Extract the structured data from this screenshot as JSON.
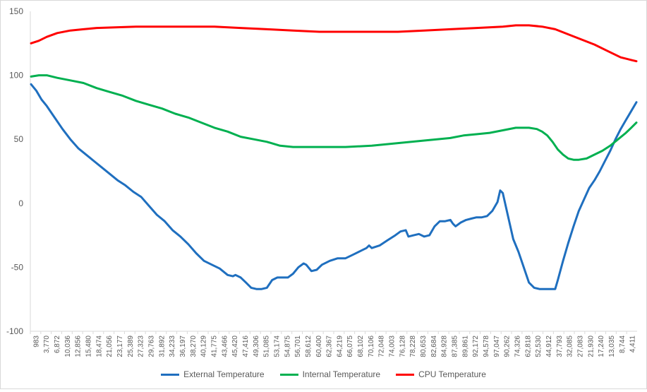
{
  "chart_data": {
    "type": "line",
    "title": "",
    "xlabel": "",
    "ylabel": "",
    "ylim": [
      -100,
      150
    ],
    "y_ticks": [
      -100,
      -50,
      0,
      50,
      100,
      150
    ],
    "grid": false,
    "legend_position": "bottom",
    "x_tick_labels": [
      "983",
      "3,770",
      "6,872",
      "10,036",
      "12,856",
      "15,480",
      "18,474",
      "21,056",
      "23,177",
      "25,389",
      "27,323",
      "29,763",
      "31,892",
      "34,233",
      "36,197",
      "38,270",
      "40,129",
      "41,775",
      "43,466",
      "45,420",
      "47,416",
      "49,306",
      "51,085",
      "53,174",
      "54,875",
      "56,701",
      "58,612",
      "60,400",
      "62,367",
      "64,219",
      "66,075",
      "68,102",
      "70,106",
      "72,048",
      "74,003",
      "76,128",
      "78,228",
      "80,653",
      "82,684",
      "84,928",
      "87,385",
      "89,861",
      "92,172",
      "94,578",
      "97,047",
      "90,262",
      "74,326",
      "62,818",
      "52,530",
      "44,912",
      "37,793",
      "32,085",
      "27,083",
      "21,930",
      "17,240",
      "13,035",
      "8,744",
      "4,411"
    ],
    "series": [
      {
        "name": "External Temperature",
        "color": "#1f6fbf",
        "values": [
          [
            0,
            93
          ],
          [
            2,
            88
          ],
          [
            4,
            81
          ],
          [
            6,
            76
          ],
          [
            9,
            67
          ],
          [
            12,
            58
          ],
          [
            15,
            50
          ],
          [
            18,
            43
          ],
          [
            21,
            38
          ],
          [
            24,
            33
          ],
          [
            27,
            28
          ],
          [
            30,
            23
          ],
          [
            33,
            18
          ],
          [
            36,
            14
          ],
          [
            39,
            9
          ],
          [
            42,
            5
          ],
          [
            45,
            -2
          ],
          [
            48,
            -9
          ],
          [
            51,
            -14
          ],
          [
            54,
            -21
          ],
          [
            57,
            -26
          ],
          [
            60,
            -32
          ],
          [
            63,
            -39
          ],
          [
            66,
            -45
          ],
          [
            69,
            -48
          ],
          [
            72,
            -51
          ],
          [
            75,
            -56
          ],
          [
            77,
            -57
          ],
          [
            78,
            -56
          ],
          [
            80,
            -58
          ],
          [
            82,
            -62
          ],
          [
            84,
            -66
          ],
          [
            86,
            -67
          ],
          [
            88,
            -67
          ],
          [
            90,
            -66
          ],
          [
            92,
            -60
          ],
          [
            94,
            -58
          ],
          [
            96,
            -58
          ],
          [
            98,
            -58
          ],
          [
            100,
            -55
          ],
          [
            102,
            -50
          ],
          [
            104,
            -47
          ],
          [
            105,
            -48
          ],
          [
            107,
            -53
          ],
          [
            109,
            -52
          ],
          [
            111,
            -48
          ],
          [
            114,
            -45
          ],
          [
            117,
            -43
          ],
          [
            120,
            -43
          ],
          [
            123,
            -40
          ],
          [
            126,
            -37
          ],
          [
            128,
            -35
          ],
          [
            129,
            -33
          ],
          [
            130,
            -35
          ],
          [
            133,
            -33
          ],
          [
            136,
            -29
          ],
          [
            139,
            -25
          ],
          [
            141,
            -22
          ],
          [
            143,
            -21
          ],
          [
            144,
            -26
          ],
          [
            146,
            -25
          ],
          [
            148,
            -24
          ],
          [
            150,
            -26
          ],
          [
            152,
            -25
          ],
          [
            154,
            -18
          ],
          [
            156,
            -14
          ],
          [
            158,
            -14
          ],
          [
            160,
            -13
          ],
          [
            161,
            -16
          ],
          [
            162,
            -18
          ],
          [
            164,
            -15
          ],
          [
            166,
            -13
          ],
          [
            168,
            -12
          ],
          [
            170,
            -11
          ],
          [
            172,
            -11
          ],
          [
            174,
            -10
          ],
          [
            176,
            -6
          ],
          [
            178,
            1
          ],
          [
            179,
            10
          ],
          [
            180,
            8
          ],
          [
            182,
            -10
          ],
          [
            184,
            -28
          ],
          [
            186,
            -38
          ],
          [
            188,
            -50
          ],
          [
            190,
            -62
          ],
          [
            192,
            -66
          ],
          [
            194,
            -67
          ],
          [
            200,
            -67
          ],
          [
            201,
            -60
          ],
          [
            203,
            -45
          ],
          [
            205,
            -31
          ],
          [
            207,
            -18
          ],
          [
            209,
            -6
          ],
          [
            211,
            3
          ],
          [
            213,
            12
          ],
          [
            215,
            18
          ],
          [
            217,
            25
          ],
          [
            219,
            33
          ],
          [
            221,
            41
          ],
          [
            223,
            50
          ],
          [
            225,
            58
          ],
          [
            227,
            65
          ],
          [
            229,
            72
          ],
          [
            231,
            79
          ]
        ]
      },
      {
        "name": "Internal Temperature",
        "color": "#00b050",
        "values": [
          [
            0,
            99
          ],
          [
            3,
            100
          ],
          [
            6,
            100
          ],
          [
            10,
            98
          ],
          [
            15,
            96
          ],
          [
            20,
            94
          ],
          [
            25,
            90
          ],
          [
            30,
            87
          ],
          [
            35,
            84
          ],
          [
            40,
            80
          ],
          [
            45,
            77
          ],
          [
            50,
            74
          ],
          [
            55,
            70
          ],
          [
            60,
            67
          ],
          [
            65,
            63
          ],
          [
            70,
            59
          ],
          [
            75,
            56
          ],
          [
            80,
            52
          ],
          [
            85,
            50
          ],
          [
            90,
            48
          ],
          [
            95,
            45
          ],
          [
            100,
            44
          ],
          [
            110,
            44
          ],
          [
            120,
            44
          ],
          [
            130,
            45
          ],
          [
            140,
            47
          ],
          [
            150,
            49
          ],
          [
            160,
            51
          ],
          [
            165,
            53
          ],
          [
            170,
            54
          ],
          [
            175,
            55
          ],
          [
            180,
            57
          ],
          [
            185,
            59
          ],
          [
            190,
            59
          ],
          [
            193,
            58
          ],
          [
            195,
            56
          ],
          [
            197,
            53
          ],
          [
            199,
            48
          ],
          [
            201,
            42
          ],
          [
            203,
            38
          ],
          [
            205,
            35
          ],
          [
            207,
            34
          ],
          [
            209,
            34
          ],
          [
            212,
            35
          ],
          [
            215,
            38
          ],
          [
            218,
            41
          ],
          [
            221,
            45
          ],
          [
            224,
            50
          ],
          [
            227,
            55
          ],
          [
            229,
            59
          ],
          [
            231,
            63
          ]
        ]
      },
      {
        "name": "CPU Temperature",
        "color": "#ff0000",
        "values": [
          [
            0,
            125
          ],
          [
            3,
            127
          ],
          [
            6,
            130
          ],
          [
            10,
            133
          ],
          [
            15,
            135
          ],
          [
            20,
            136
          ],
          [
            25,
            137
          ],
          [
            40,
            138
          ],
          [
            70,
            138
          ],
          [
            80,
            137
          ],
          [
            90,
            136
          ],
          [
            100,
            135
          ],
          [
            110,
            134
          ],
          [
            140,
            134
          ],
          [
            150,
            135
          ],
          [
            160,
            136
          ],
          [
            170,
            137
          ],
          [
            180,
            138
          ],
          [
            185,
            139
          ],
          [
            190,
            139
          ],
          [
            195,
            138
          ],
          [
            200,
            136
          ],
          [
            205,
            132
          ],
          [
            210,
            128
          ],
          [
            215,
            124
          ],
          [
            220,
            119
          ],
          [
            225,
            114
          ],
          [
            229,
            112
          ],
          [
            231,
            111
          ]
        ]
      }
    ]
  }
}
